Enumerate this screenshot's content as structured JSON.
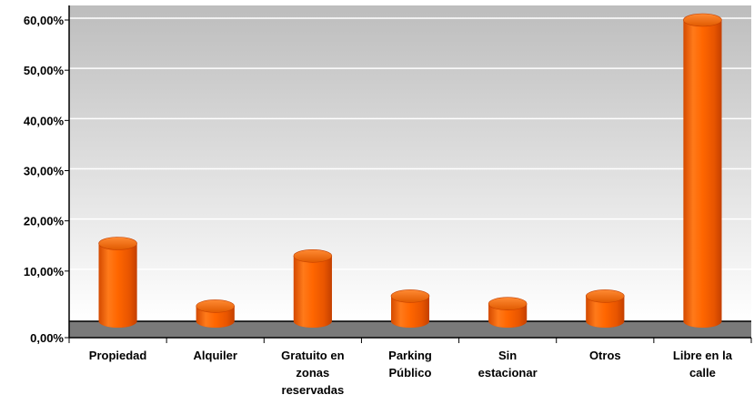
{
  "chart_data": {
    "type": "bar",
    "title": "",
    "xlabel": "",
    "ylabel": "",
    "categories": [
      [
        "Propiedad"
      ],
      [
        "Alquiler"
      ],
      [
        "Gratuito en",
        "zonas",
        "reservadas"
      ],
      [
        "Parking",
        "Público"
      ],
      [
        "Sin",
        "estacionar"
      ],
      [
        "Otros"
      ],
      [
        "Libre en la",
        "calle"
      ]
    ],
    "values": [
      15.5,
      3.0,
      13.0,
      5.0,
      3.5,
      5.0,
      60.0
    ],
    "ylim": [
      0,
      60
    ],
    "yticks": [
      "0,00%",
      "10,00%",
      "20,00%",
      "30,00%",
      "40,00%",
      "50,00%",
      "60,00%"
    ],
    "grid": true,
    "bar_color": "#ff6600",
    "plot_colors": {
      "background_top": "#bdbdbd",
      "background_bottom": "#ffffff",
      "floor": "#7a7a7a",
      "gridline": "#ffffff"
    }
  }
}
